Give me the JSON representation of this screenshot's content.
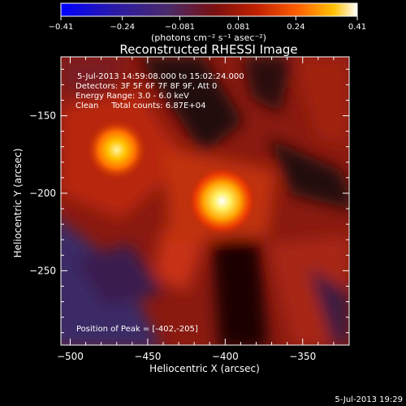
{
  "chart_data": {
    "type": "heatmap",
    "title": "Reconstructed RHESSI Image",
    "xlabel": "Heliocentric X (arcsec)",
    "ylabel": "Heliocentric Y (arcsec)",
    "xlim": [
      -506,
      -320
    ],
    "ylim": [
      -298,
      -112
    ],
    "x_ticks": [
      -500,
      -450,
      -400,
      -350
    ],
    "y_ticks": [
      -150,
      -200,
      -250
    ],
    "colorbar": {
      "label": "(photons cm⁻² s⁻¹ asec⁻²)",
      "min": -0.41,
      "max": 0.41,
      "ticks": [
        -0.41,
        -0.24,
        -0.081,
        0.081,
        0.24,
        0.41
      ],
      "colors": [
        "#0000ff",
        "#2a1aa8",
        "#4a2a6a",
        "#7a1010",
        "#c02000",
        "#ff6000",
        "#ffc000",
        "#ffffff"
      ]
    },
    "annotation_lines": [
      "5-Jul-2013 14:59:08.000 to 15:02:24.000",
      "Detectors: 3F 5F 6F 7F 8F 9F, Att 0",
      "Energy Range: 3.0 - 6.0 keV",
      "Clean     Total counts: 6.87E+04"
    ],
    "peak_text": "Position of Peak = [-402,-205]",
    "sources": [
      {
        "x": -402,
        "y": -205,
        "peak": 0.41
      },
      {
        "x": -470,
        "y": -172,
        "peak": 0.3
      }
    ]
  },
  "footer": {
    "timestamp": "5-Jul-2013 19:29"
  }
}
